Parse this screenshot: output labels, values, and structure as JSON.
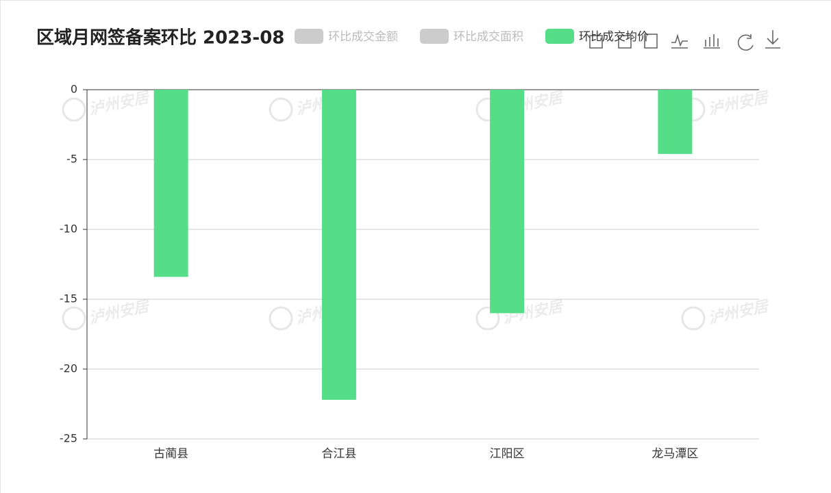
{
  "chart_data": {
    "type": "bar",
    "title": "区域月网签备案环比 2023-08",
    "categories": [
      "古蔺县",
      "合江县",
      "江阳区",
      "龙马潭区"
    ],
    "series": [
      {
        "name": "环比成交均价",
        "color": "#55dd88",
        "values": [
          -13.4,
          -22.2,
          -16.0,
          -4.6
        ]
      }
    ],
    "legend_items": [
      {
        "name": "环比成交金额",
        "color": "#cccccc"
      },
      {
        "name": "环比成交面积",
        "color": "#cccccc"
      }
    ],
    "ylim": [
      -25,
      0
    ],
    "yticks": [
      0,
      -5,
      -10,
      -15,
      -20,
      -25
    ],
    "grid": true,
    "watermark": "泸州安居"
  }
}
